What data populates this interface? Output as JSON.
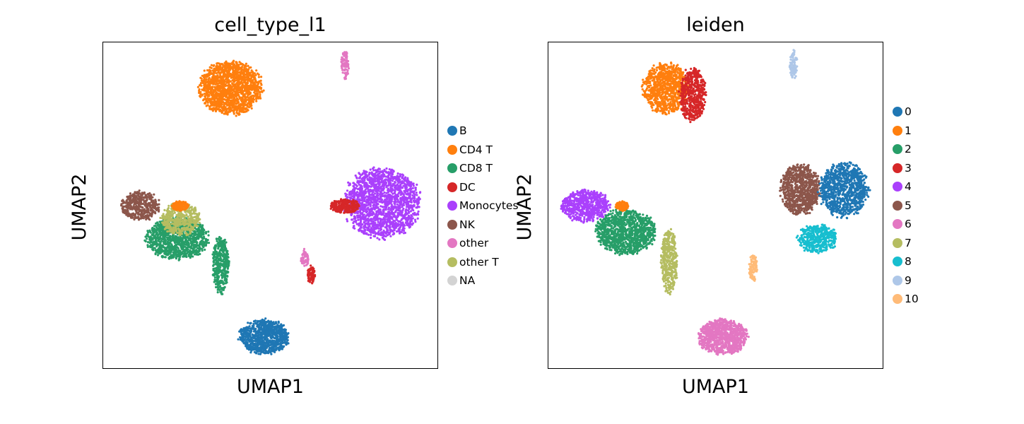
{
  "chart_data": [
    {
      "type": "scatter",
      "title": "cell_type_l1",
      "xlabel": "UMAP1",
      "ylabel": "UMAP2",
      "ticks": "none",
      "legend_position": "right",
      "legend": [
        {
          "name": "B",
          "color": "#1f77b4"
        },
        {
          "name": "CD4 T",
          "color": "#ff7f0e"
        },
        {
          "name": "CD8 T",
          "color": "#279e68"
        },
        {
          "name": "DC",
          "color": "#d62728"
        },
        {
          "name": "Monocytes",
          "color": "#aa40fc"
        },
        {
          "name": "NK",
          "color": "#8c564b"
        },
        {
          "name": "other",
          "color": "#e377c2"
        },
        {
          "name": "other T",
          "color": "#b5bd61"
        },
        {
          "name": "NA",
          "color": "#d3d3d3"
        }
      ],
      "clusters": [
        {
          "label": "CD4 T",
          "color": "#ff7f0e",
          "x": 0.38,
          "y": 0.86,
          "rx": 0.095,
          "ry": 0.085,
          "n": 1500
        },
        {
          "label": "Monocytes",
          "color": "#aa40fc",
          "x": 0.83,
          "y": 0.51,
          "rx": 0.115,
          "ry": 0.11,
          "n": 1700
        },
        {
          "label": "CD8 T",
          "color": "#279e68",
          "x": 0.22,
          "y": 0.4,
          "rx": 0.095,
          "ry": 0.065,
          "n": 1100
        },
        {
          "label": "NK",
          "color": "#8c564b",
          "x": 0.11,
          "y": 0.5,
          "rx": 0.06,
          "ry": 0.045,
          "n": 420
        },
        {
          "label": "other T",
          "color": "#b5bd61",
          "x": 0.23,
          "y": 0.46,
          "rx": 0.06,
          "ry": 0.05,
          "n": 420
        },
        {
          "label": "CD8 T",
          "color": "#279e68",
          "x": 0.35,
          "y": 0.32,
          "rx": 0.025,
          "ry": 0.09,
          "n": 380
        },
        {
          "label": "CD4 T",
          "color": "#ff7f0e",
          "x": 0.23,
          "y": 0.5,
          "rx": 0.025,
          "ry": 0.015,
          "n": 150
        },
        {
          "label": "DC",
          "color": "#d62728",
          "x": 0.72,
          "y": 0.5,
          "rx": 0.045,
          "ry": 0.022,
          "n": 280
        },
        {
          "label": "DC",
          "color": "#d62728",
          "x": 0.62,
          "y": 0.29,
          "rx": 0.012,
          "ry": 0.028,
          "n": 90
        },
        {
          "label": "other",
          "color": "#e377c2",
          "x": 0.6,
          "y": 0.34,
          "rx": 0.012,
          "ry": 0.028,
          "n": 60
        },
        {
          "label": "other",
          "color": "#e377c2",
          "x": 0.72,
          "y": 0.93,
          "rx": 0.012,
          "ry": 0.045,
          "n": 90
        },
        {
          "label": "B",
          "color": "#1f77b4",
          "x": 0.48,
          "y": 0.1,
          "rx": 0.075,
          "ry": 0.055,
          "n": 900
        }
      ]
    },
    {
      "type": "scatter",
      "title": "leiden",
      "xlabel": "UMAP1",
      "ylabel": "UMAP2",
      "ticks": "none",
      "legend_position": "right",
      "legend": [
        {
          "name": "0",
          "color": "#1f77b4"
        },
        {
          "name": "1",
          "color": "#ff7f0e"
        },
        {
          "name": "2",
          "color": "#279e68"
        },
        {
          "name": "3",
          "color": "#d62728"
        },
        {
          "name": "4",
          "color": "#aa40fc"
        },
        {
          "name": "5",
          "color": "#8c564b"
        },
        {
          "name": "6",
          "color": "#e377c2"
        },
        {
          "name": "7",
          "color": "#b5bd61"
        },
        {
          "name": "8",
          "color": "#17becf"
        },
        {
          "name": "9",
          "color": "#aec7e8"
        },
        {
          "name": "10",
          "color": "#ffbb78"
        }
      ],
      "clusters": [
        {
          "label": "1",
          "color": "#ff7f0e",
          "x": 0.35,
          "y": 0.86,
          "rx": 0.07,
          "ry": 0.08,
          "n": 900
        },
        {
          "label": "3",
          "color": "#d62728",
          "x": 0.43,
          "y": 0.84,
          "rx": 0.04,
          "ry": 0.085,
          "n": 550
        },
        {
          "label": "5",
          "color": "#8c564b",
          "x": 0.75,
          "y": 0.55,
          "rx": 0.06,
          "ry": 0.08,
          "n": 850
        },
        {
          "label": "0",
          "color": "#1f77b4",
          "x": 0.88,
          "y": 0.55,
          "rx": 0.075,
          "ry": 0.085,
          "n": 950
        },
        {
          "label": "8",
          "color": "#17becf",
          "x": 0.8,
          "y": 0.4,
          "rx": 0.06,
          "ry": 0.045,
          "n": 420
        },
        {
          "label": "4",
          "color": "#aa40fc",
          "x": 0.11,
          "y": 0.5,
          "rx": 0.075,
          "ry": 0.05,
          "n": 620
        },
        {
          "label": "2",
          "color": "#279e68",
          "x": 0.23,
          "y": 0.42,
          "rx": 0.09,
          "ry": 0.07,
          "n": 1100
        },
        {
          "label": "1",
          "color": "#ff7f0e",
          "x": 0.22,
          "y": 0.5,
          "rx": 0.02,
          "ry": 0.015,
          "n": 120
        },
        {
          "label": "7",
          "color": "#b5bd61",
          "x": 0.36,
          "y": 0.33,
          "rx": 0.025,
          "ry": 0.1,
          "n": 400
        },
        {
          "label": "10",
          "color": "#ffbb78",
          "x": 0.61,
          "y": 0.31,
          "rx": 0.012,
          "ry": 0.045,
          "n": 90
        },
        {
          "label": "9",
          "color": "#aec7e8",
          "x": 0.73,
          "y": 0.93,
          "rx": 0.012,
          "ry": 0.045,
          "n": 90
        },
        {
          "label": "6",
          "color": "#e377c2",
          "x": 0.52,
          "y": 0.1,
          "rx": 0.075,
          "ry": 0.055,
          "n": 900
        }
      ]
    }
  ]
}
